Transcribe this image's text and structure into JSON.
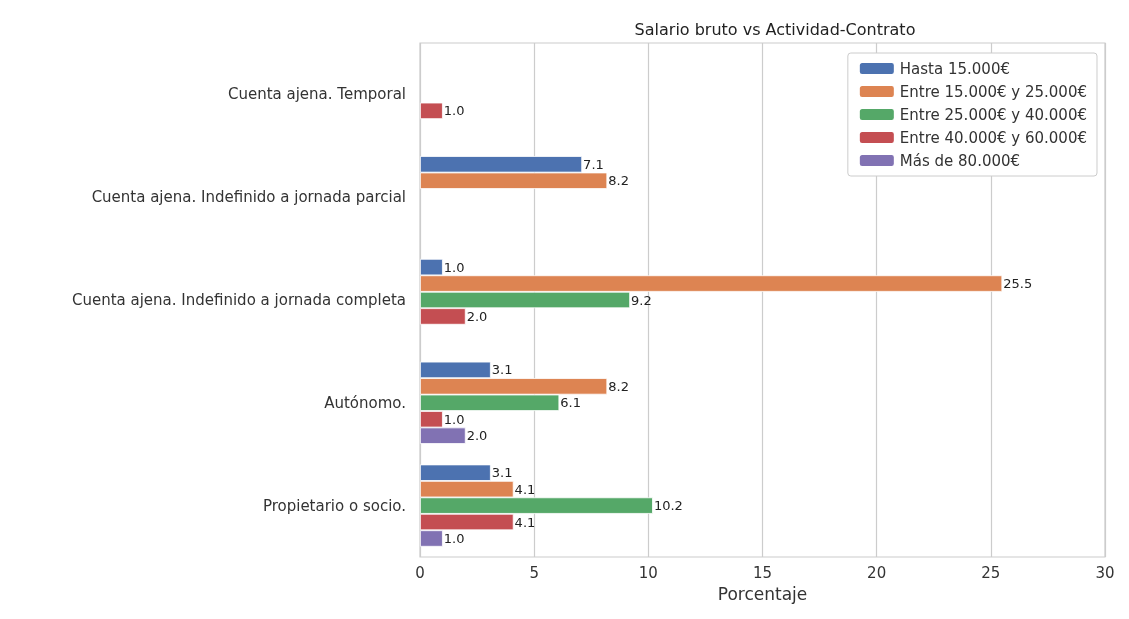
{
  "chart_data": {
    "type": "bar",
    "orientation": "horizontal",
    "title": "Salario bruto vs Actividad-Contrato",
    "xlabel": "Porcentaje",
    "categories": [
      "Cuenta ajena. Temporal",
      "Cuenta ajena. Indefinido a jornada parcial",
      "Cuenta ajena. Indefinido a jornada completa",
      "Autónomo.",
      "Propietario o socio."
    ],
    "series": [
      {
        "name": "Hasta 15.000€",
        "color": "#4c72b0",
        "values": [
          null,
          7.1,
          1.0,
          3.1,
          3.1
        ],
        "value_labels": [
          null,
          "7.1",
          "1.0",
          "3.1",
          "3.1"
        ]
      },
      {
        "name": "Entre 15.000€ y 25.000€",
        "color": "#dd8452",
        "values": [
          null,
          8.2,
          25.5,
          8.2,
          4.1
        ],
        "value_labels": [
          null,
          "8.2",
          "25.5",
          "8.2",
          "4.1"
        ]
      },
      {
        "name": "Entre 25.000€ y 40.000€",
        "color": "#55a868",
        "values": [
          null,
          null,
          9.2,
          6.1,
          10.2
        ],
        "value_labels": [
          null,
          null,
          "9.2",
          "6.1",
          "10.2"
        ]
      },
      {
        "name": "Entre 40.000€ y 60.000€",
        "color": "#c44e52",
        "values": [
          1.0,
          null,
          2.0,
          1.0,
          4.1
        ],
        "value_labels": [
          "1.0",
          null,
          "2.0",
          "1.0",
          "4.1"
        ]
      },
      {
        "name": "Más de 80.000€",
        "color": "#8172b3",
        "values": [
          null,
          null,
          null,
          2.0,
          1.0
        ],
        "value_labels": [
          null,
          null,
          null,
          "2.0",
          "1.0"
        ]
      }
    ],
    "xlim": [
      0,
      30
    ],
    "xticks": [
      0,
      5,
      10,
      15,
      20,
      25,
      30
    ],
    "grid": "x",
    "legend": "top right"
  }
}
